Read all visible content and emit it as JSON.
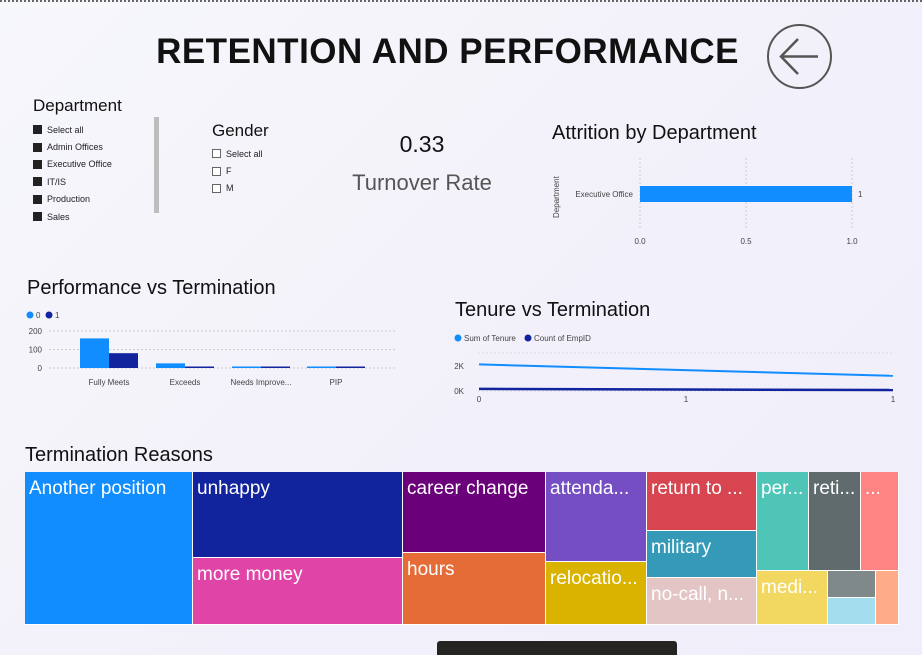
{
  "page": {
    "title": "RETENTION AND PERFORMANCE"
  },
  "department_slicer": {
    "title": "Department",
    "items": [
      "Select all",
      "Admin Offices",
      "Executive Office",
      "IT/IS",
      "Production",
      "Sales"
    ]
  },
  "gender_slicer": {
    "title": "Gender",
    "items": [
      "Select all",
      "F",
      "M"
    ]
  },
  "kpi": {
    "value": "0.33",
    "label": "Turnover Rate"
  },
  "attrition": {
    "title": "Attrition by Department",
    "ylabel": "Department",
    "category": "Executive Office",
    "value_label": "1",
    "ticks": [
      "0.0",
      "0.5",
      "1.0"
    ]
  },
  "performance": {
    "title": "Performance vs Termination",
    "legend": [
      "0",
      "1"
    ],
    "yticks": [
      "200",
      "100",
      "0"
    ],
    "categories": [
      "Fully Meets",
      "Exceeds",
      "Needs Improve...",
      "PIP"
    ]
  },
  "tenure": {
    "title": "Tenure vs Termination",
    "legend": [
      "Sum of Tenure",
      "Count of EmpID"
    ],
    "yticks": [
      "2K",
      "0K"
    ],
    "xticks": [
      "0",
      "1",
      "1"
    ]
  },
  "treemap": {
    "title": "Termination Reasons",
    "tiles": [
      "Another position",
      "unhappy",
      "more money",
      "career change",
      "hours",
      "attenda...",
      "relocatio...",
      "return to ...",
      "military",
      "no-call, n...",
      "per...",
      "reti...",
      "...",
      "medi..."
    ]
  },
  "chart_data": [
    {
      "type": "bar",
      "title": "Attrition by Department",
      "ylabel": "Department",
      "categories": [
        "Executive Office"
      ],
      "values": [
        1
      ],
      "xlim": [
        0,
        1
      ],
      "orientation": "horizontal"
    },
    {
      "type": "bar",
      "title": "Performance vs Termination",
      "categories": [
        "Fully Meets",
        "Exceeds",
        "Needs Improve...",
        "PIP"
      ],
      "series": [
        {
          "name": "0",
          "values": [
            160,
            25,
            8,
            5
          ]
        },
        {
          "name": "1",
          "values": [
            80,
            5,
            8,
            5
          ]
        }
      ],
      "ylim": [
        0,
        200
      ],
      "legend": "top-left",
      "colors": [
        "#118DFF",
        "#12239E"
      ]
    },
    {
      "type": "line",
      "title": "Tenure vs Termination",
      "x": [
        0,
        1
      ],
      "series": [
        {
          "name": "Sum of Tenure",
          "values": [
            2800,
            1600
          ]
        },
        {
          "name": "Count of EmpID",
          "values": [
            220,
            100
          ]
        }
      ],
      "ylim": [
        0,
        4000
      ],
      "legend": "top-left",
      "colors": [
        "#118DFF",
        "#12239E"
      ]
    },
    {
      "type": "treemap",
      "title": "Termination Reasons",
      "categories": [
        "Another position",
        "unhappy",
        "more money",
        "career change",
        "hours",
        "attenda...",
        "relocatio...",
        "return to ...",
        "military",
        "no-call, n...",
        "per...",
        "reti...",
        "...",
        "medi..."
      ],
      "colors": [
        "#118DFF",
        "#12239E",
        "#E044A7",
        "#6B007B",
        "#E66C37",
        "#744EC2",
        "#D9B300",
        "#D64550",
        "#197278",
        "#E3C5C5",
        "#4FC5B8",
        "#5F6B6D",
        "#FE8383",
        "#F2D860"
      ]
    }
  ]
}
